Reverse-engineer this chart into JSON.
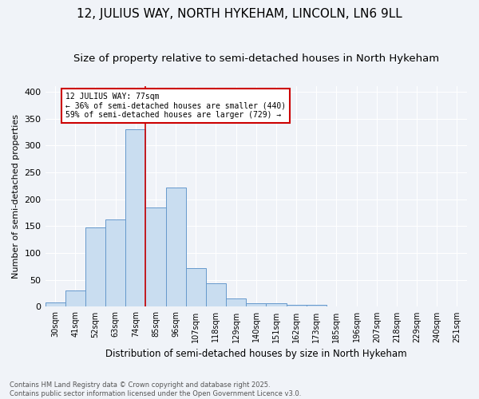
{
  "title": "12, JULIUS WAY, NORTH HYKEHAM, LINCOLN, LN6 9LL",
  "subtitle": "Size of property relative to semi-detached houses in North Hykeham",
  "xlabel": "Distribution of semi-detached houses by size in North Hykeham",
  "ylabel": "Number of semi-detached properties",
  "categories": [
    "30sqm",
    "41sqm",
    "52sqm",
    "63sqm",
    "74sqm",
    "85sqm",
    "96sqm",
    "107sqm",
    "118sqm",
    "129sqm",
    "140sqm",
    "151sqm",
    "162sqm",
    "173sqm",
    "185sqm",
    "196sqm",
    "207sqm",
    "218sqm",
    "229sqm",
    "240sqm",
    "251sqm"
  ],
  "values": [
    8,
    30,
    147,
    162,
    330,
    185,
    222,
    72,
    43,
    16,
    7,
    6,
    4,
    3,
    1,
    1,
    1,
    0,
    0,
    0,
    1
  ],
  "bar_color": "#c9ddf0",
  "bar_edge_color": "#6699cc",
  "vline_color": "#cc0000",
  "vline_x_index": 4,
  "annotation_text": "12 JULIUS WAY: 77sqm\n← 36% of semi-detached houses are smaller (440)\n59% of semi-detached houses are larger (729) →",
  "annotation_box_color": "#cc0000",
  "ylim": [
    0,
    410
  ],
  "yticks": [
    0,
    50,
    100,
    150,
    200,
    250,
    300,
    350,
    400
  ],
  "footnote": "Contains HM Land Registry data © Crown copyright and database right 2025.\nContains public sector information licensed under the Open Government Licence v3.0.",
  "title_fontsize": 11,
  "subtitle_fontsize": 9.5,
  "bg_color": "#f0f3f8",
  "plot_bg_color": "#f0f3f8",
  "grid_color": "#ffffff"
}
